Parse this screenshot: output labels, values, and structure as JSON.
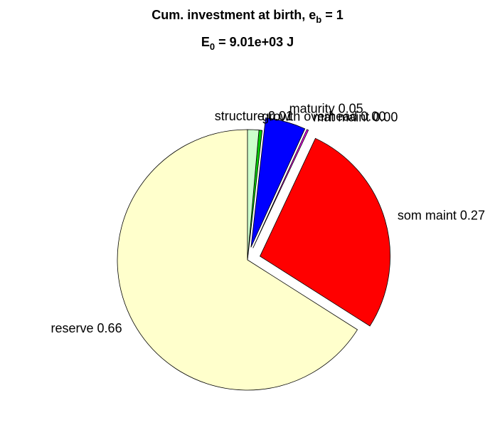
{
  "chart_data": {
    "type": "pie",
    "title": [
      "Cum. investment at birth, e",
      "b",
      " = 1"
    ],
    "subtitle": [
      "E",
      "0",
      " = 9.01e+03 J"
    ],
    "categories": [
      "reserve",
      "som maint",
      "mat maint",
      "maturity",
      "growth overhead",
      "structure"
    ],
    "values": [
      0.66,
      0.27,
      0.002,
      0.05,
      0.004,
      0.014
    ],
    "value_labels": [
      "0.66",
      "0.27",
      "0.00",
      "0.05",
      "0.00",
      "0.01"
    ],
    "colors": [
      "#ffffcc",
      "#ff0000",
      "#ff00ff",
      "#0000ff",
      "#00cc00",
      "#ccffcc"
    ],
    "explode": [
      false,
      true,
      true,
      true,
      false,
      false
    ]
  }
}
